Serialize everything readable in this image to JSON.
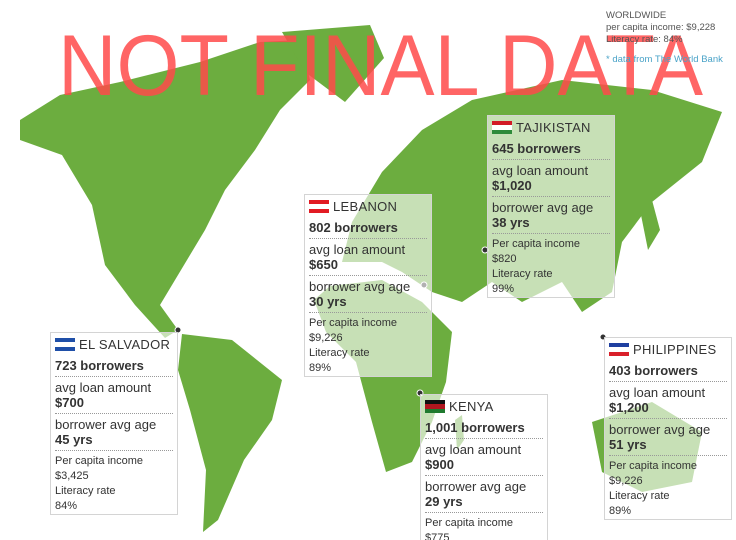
{
  "watermark": "NOT FINAL DATA",
  "worldwide": {
    "title": "WORLDWIDE",
    "income": "per capita income: $9,228",
    "literacy": "Literacy rate: 84%",
    "source": "* data from The World Bank"
  },
  "countries": [
    {
      "name": "EL SALVADOR",
      "borrowers": "723 borrowers",
      "loan_label": "avg loan amount",
      "loan": "$700",
      "age_label": "borrower avg age",
      "age": "45 yrs",
      "income_label": "Per capita income",
      "income": "$3,425",
      "literacy_label": "Literacy rate",
      "literacy": "84%"
    },
    {
      "name": "LEBANON",
      "borrowers": "802 borrowers",
      "loan_label": "avg loan amount",
      "loan": "$650",
      "age_label": "borrower avg age",
      "age": "30 yrs",
      "income_label": "Per capita income",
      "income": "$9,226",
      "literacy_label": "Literacy rate",
      "literacy": "89%"
    },
    {
      "name": "TAJIKISTAN",
      "borrowers": "645 borrowers",
      "loan_label": "avg loan amount",
      "loan": "$1,020",
      "age_label": "borrower avg age",
      "age": "38 yrs",
      "income_label": "Per capita income",
      "income": "$820",
      "literacy_label": "Literacy rate",
      "literacy": "99%"
    },
    {
      "name": "KENYA",
      "borrowers": "1,001 borrowers",
      "loan_label": "avg loan amount",
      "loan": "$900",
      "age_label": "borrower avg age",
      "age": "29 yrs",
      "income_label": "Per capita income",
      "income": "$775"
    },
    {
      "name": "PHILIPPINES",
      "borrowers": "403 borrowers",
      "loan_label": "avg loan amount",
      "loan": "$1,200",
      "age_label": "borrower avg age",
      "age": "51 yrs",
      "income_label": "Per capita income",
      "income": "$9,226",
      "literacy_label": "Literacy rate",
      "literacy": "89%"
    }
  ]
}
